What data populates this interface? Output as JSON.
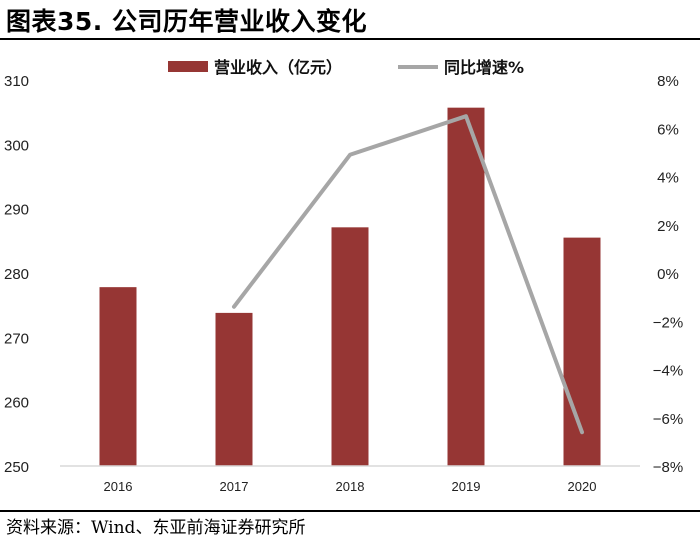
{
  "title": "图表35. 公司历年营业收入变化",
  "source": "资料来源：Wind、东亚前海证券研究所",
  "chart_data": {
    "type": "bar",
    "categories": [
      "2016",
      "2017",
      "2018",
      "2019",
      "2020"
    ],
    "series": [
      {
        "name": "营业收入（亿元）",
        "kind": "bar",
        "axis": "left",
        "color": "#963634",
        "values": [
          277.8,
          273.8,
          287.1,
          305.7,
          285.5
        ]
      },
      {
        "name": "同比增速%",
        "kind": "line",
        "axis": "right",
        "color": "#a6a6a6",
        "values": [
          null,
          -1.4,
          4.9,
          6.5,
          -6.6
        ]
      }
    ],
    "left_axis": {
      "min": 250,
      "max": 310,
      "ticks": [
        "250",
        "260",
        "270",
        "280",
        "290",
        "300",
        "310"
      ]
    },
    "right_axis": {
      "min": -8,
      "max": 8,
      "ticks": [
        "-8%",
        "-6%",
        "-4%",
        "-2%",
        "0%",
        "2%",
        "4%",
        "6%",
        "8%"
      ]
    },
    "legend_position": "top",
    "grid": false
  }
}
